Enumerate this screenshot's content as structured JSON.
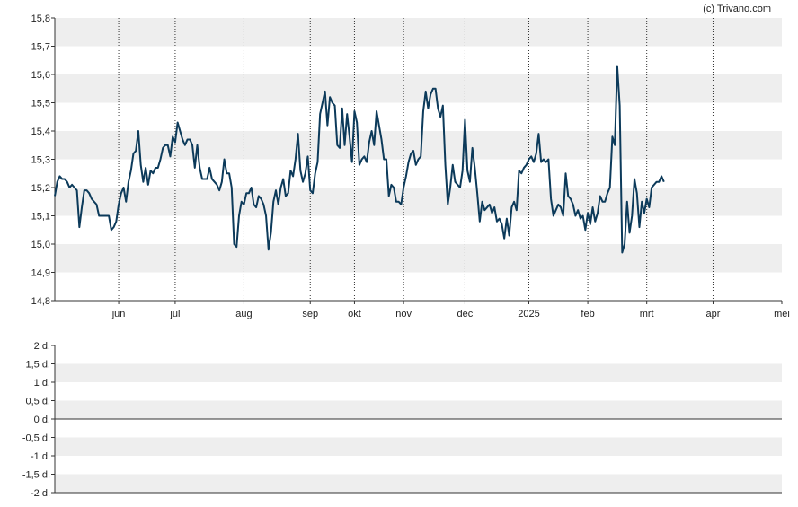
{
  "copyright": "(c) Trivano.com",
  "chart_data": [
    {
      "type": "line",
      "title": "",
      "xlabel": "",
      "ylabel": "",
      "ylim": [
        14.8,
        15.8
      ],
      "y_ticks": [
        "15,8",
        "15,7",
        "15,6",
        "15,5",
        "15,4",
        "15,3",
        "15,2",
        "15,1",
        "15,0",
        "14,9",
        "14,8"
      ],
      "x_ticks": [
        "jun",
        "jul",
        "aug",
        "sep",
        "okt",
        "nov",
        "dec",
        "2025",
        "feb",
        "mrt",
        "apr",
        "mei"
      ],
      "x_tick_index": [
        26,
        49,
        77,
        104,
        122,
        142,
        167,
        193,
        217,
        241,
        268,
        296
      ],
      "x_count": 297,
      "grid": "alternating horizontal bands, dotted vertical lines at month ticks",
      "line_color": "#0c3a5a",
      "series": [
        {
          "values": [
            15.17,
            15.22,
            15.24,
            15.23,
            15.23,
            15.22,
            15.2,
            15.21,
            15.2,
            15.19,
            15.06,
            15.13,
            15.19,
            15.19,
            15.18,
            15.16,
            15.15,
            15.14,
            15.1,
            15.1,
            15.1,
            15.1,
            15.1,
            15.05,
            15.06,
            15.08,
            15.14,
            15.18,
            15.2,
            15.15,
            15.22,
            15.26,
            15.32,
            15.33,
            15.4,
            15.28,
            15.22,
            15.27,
            15.21,
            15.26,
            15.25,
            15.27,
            15.27,
            15.3,
            15.34,
            15.35,
            15.35,
            15.31,
            15.38,
            15.36,
            15.43,
            15.4,
            15.37,
            15.35,
            15.37,
            15.37,
            15.35,
            15.27,
            15.35,
            15.27,
            15.23,
            15.23,
            15.23,
            15.27,
            15.23,
            15.22,
            15.21,
            15.19,
            15.22,
            15.3,
            15.25,
            15.25,
            15.2,
            15.0,
            14.99,
            15.1,
            15.15,
            15.14,
            15.18,
            15.18,
            15.2,
            15.14,
            15.13,
            15.17,
            15.16,
            15.14,
            15.1,
            14.98,
            15.04,
            15.15,
            15.19,
            15.14,
            15.2,
            15.23,
            15.17,
            15.18,
            15.26,
            15.24,
            15.3,
            15.39,
            15.26,
            15.22,
            15.25,
            15.31,
            15.19,
            15.18,
            15.25,
            15.29,
            15.46,
            15.5,
            15.54,
            15.42,
            15.52,
            15.5,
            15.49,
            15.35,
            15.34,
            15.48,
            15.35,
            15.46,
            15.38,
            15.29,
            15.47,
            15.43,
            15.28,
            15.3,
            15.31,
            15.29,
            15.36,
            15.4,
            15.35,
            15.47,
            15.42,
            15.37,
            15.3,
            15.3,
            15.17,
            15.21,
            15.2,
            15.15,
            15.15,
            15.14,
            15.2,
            15.24,
            15.29,
            15.32,
            15.33,
            15.28,
            15.3,
            15.31,
            15.47,
            15.54,
            15.48,
            15.53,
            15.55,
            15.55,
            15.48,
            15.45,
            15.49,
            15.28,
            15.14,
            15.2,
            15.28,
            15.22,
            15.21,
            15.2,
            15.26,
            15.44,
            15.26,
            15.22,
            15.34,
            15.27,
            15.18,
            15.08,
            15.15,
            15.12,
            15.13,
            15.14,
            15.11,
            15.13,
            15.08,
            15.09,
            15.07,
            15.02,
            15.09,
            15.03,
            15.13,
            15.15,
            15.12,
            15.26,
            15.25,
            15.27,
            15.28,
            15.3,
            15.31,
            15.29,
            15.32,
            15.39,
            15.29,
            15.3,
            15.29,
            15.3,
            15.16,
            15.1,
            15.12,
            15.14,
            15.13,
            15.1,
            15.25,
            15.17,
            15.16,
            15.14,
            15.1,
            15.12,
            15.09,
            15.1,
            15.05,
            15.11,
            15.07,
            15.13,
            15.08,
            15.11,
            15.17,
            15.15,
            15.15,
            15.18,
            15.2,
            15.38,
            15.35,
            15.63,
            15.49,
            14.97,
            15.0,
            15.15,
            15.04,
            15.1,
            15.23,
            15.18,
            15.06,
            15.15,
            15.11,
            15.16,
            15.13,
            15.2,
            15.21,
            15.22,
            15.22,
            15.24,
            15.22
          ]
        }
      ]
    },
    {
      "type": "line",
      "title": "",
      "xlabel": "",
      "ylabel": "",
      "ylim": [
        -2,
        2
      ],
      "y_ticks": [
        "2 d.",
        "1,5 d.",
        "1 d.",
        "0,5 d.",
        "0 d.",
        "-0,5 d.",
        "-1 d.",
        "-1,5 d.",
        "-2 d."
      ],
      "grid": "alternating horizontal bands",
      "zero_line": true,
      "series": []
    }
  ]
}
